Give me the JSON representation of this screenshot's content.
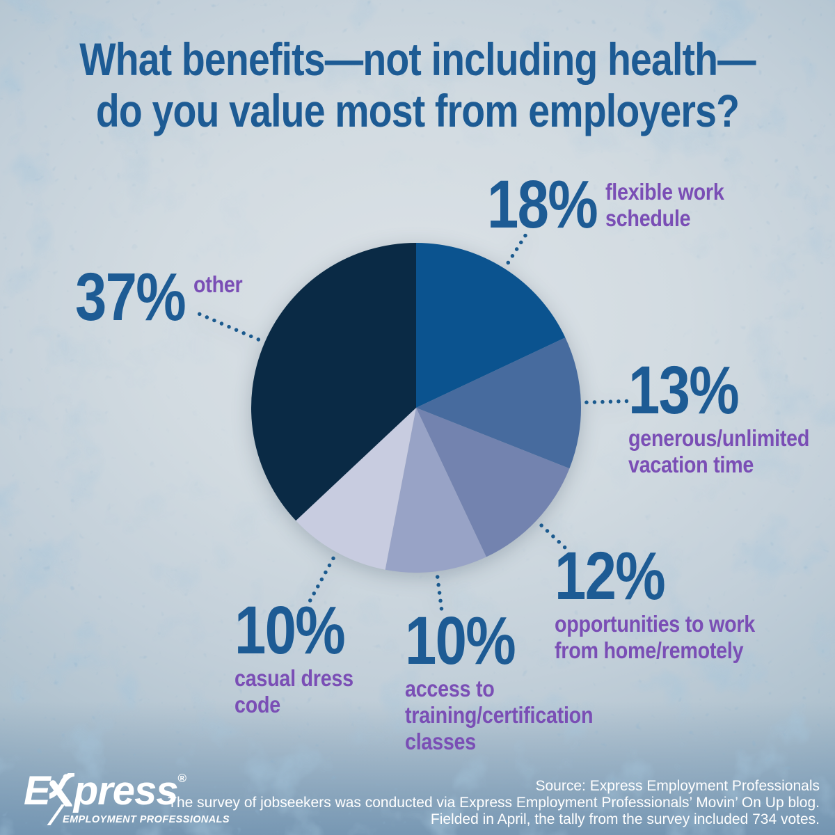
{
  "title": {
    "line1": "What benefits—not including health—",
    "line2": "do you value most from employers?"
  },
  "chart_data": {
    "type": "pie",
    "title": "What benefits—not including health—do you value most from employers?",
    "start_angle_deg": 0,
    "direction": "clockwise",
    "slices": [
      {
        "label": "flexible work schedule",
        "value": 18,
        "color": "#0B538F"
      },
      {
        "label": "generous/unlimited vacation time",
        "value": 13,
        "color": "#476B9E"
      },
      {
        "label": "opportunities to work from home/remotely",
        "value": 12,
        "color": "#7383AF"
      },
      {
        "label": "access to training/certification classes",
        "value": 10,
        "color": "#98A3C6"
      },
      {
        "label": "casual dress code",
        "value": 10,
        "color": "#C8CCE0"
      },
      {
        "label": "other",
        "value": 37,
        "color": "#0A2A45"
      }
    ],
    "legend_position": "callouts-around-pie",
    "leader_dot_color": "#1B5A8E"
  },
  "callouts": {
    "flexible": {
      "pct": "18%",
      "desc": "flexible work\nschedule"
    },
    "vacation": {
      "pct": "13%",
      "desc": "generous/unlimited\nvacation time"
    },
    "remote": {
      "pct": "12%",
      "desc": "opportunities to work\nfrom home/remotely"
    },
    "training": {
      "pct": "10%",
      "desc": "access to\ntraining/certification\nclasses"
    },
    "casual": {
      "pct": "10%",
      "desc": "casual dress\ncode"
    },
    "other": {
      "pct": "37%",
      "desc": "other"
    }
  },
  "footer": {
    "logo": {
      "brand_prefix": "E",
      "brand_suffix": "press",
      "registered": "®",
      "tagline": "EMPLOYMENT PROFESSIONALS"
    },
    "source_text": "Source: Express Employment Professionals\nThe survey of jobseekers was conducted via Express Employment Professionals’ Movin’ On Up blog.\nFielded in April, the tally from the survey included 734 votes."
  },
  "colors": {
    "title_text": "#1D5B94",
    "percent_text": "#1D5B94",
    "desc_text": "#7A4EB5",
    "footer_text": "#FFFFFF",
    "background_center": "#D6DCE1",
    "background_edge": "#7FA0B9"
  }
}
